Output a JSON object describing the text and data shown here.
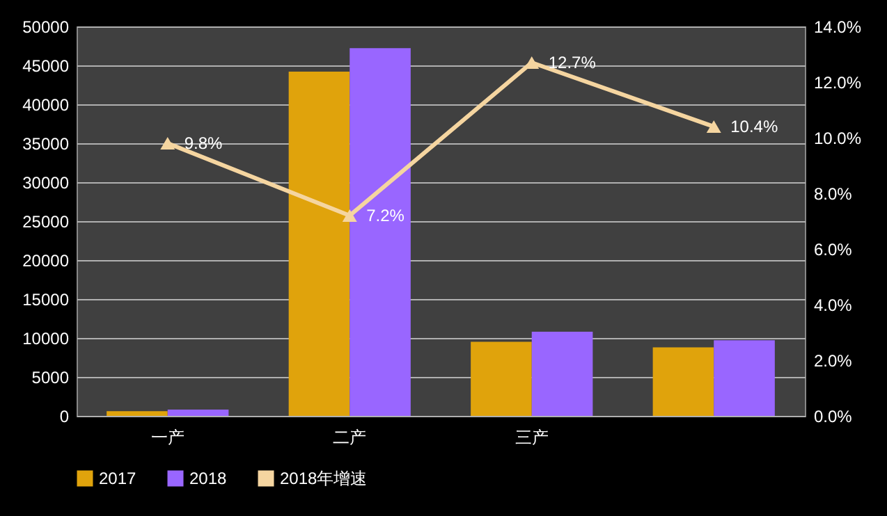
{
  "chart_data": {
    "type": "bar",
    "categories": [
      "一产",
      "二产",
      "三产",
      null
    ],
    "series": [
      {
        "name": "2017",
        "color": "#e0a30c",
        "values": [
          600,
          44200,
          9500,
          8800
        ]
      },
      {
        "name": "2018",
        "color": "#9966ff",
        "values": [
          800,
          47200,
          10800,
          9700
        ]
      },
      {
        "name": "2018年增速",
        "type": "line",
        "axis": "y2",
        "color": "#f5d5a0",
        "marker": "triangle",
        "values": [
          9.8,
          7.2,
          12.7,
          10.4
        ],
        "value_labels": [
          "9.8%",
          "7.2%",
          "12.7%",
          "10.4%"
        ]
      }
    ],
    "ylim": [
      0,
      50000
    ],
    "yticks": [
      0,
      5000,
      10000,
      15000,
      20000,
      25000,
      30000,
      35000,
      40000,
      45000,
      50000
    ],
    "y2lim": [
      0,
      14
    ],
    "y2ticks": [
      {
        "value": 0,
        "label": "0.0%"
      },
      {
        "value": 2,
        "label": "2.0%"
      },
      {
        "value": 4,
        "label": "4.0%"
      },
      {
        "value": 6,
        "label": "6.0%"
      },
      {
        "value": 8,
        "label": "8.0%"
      },
      {
        "value": 10,
        "label": "10.0%"
      },
      {
        "value": 12,
        "label": "12.0%"
      },
      {
        "value": 14,
        "label": "14.0%"
      }
    ],
    "grid": "y",
    "legend": "bottom"
  }
}
